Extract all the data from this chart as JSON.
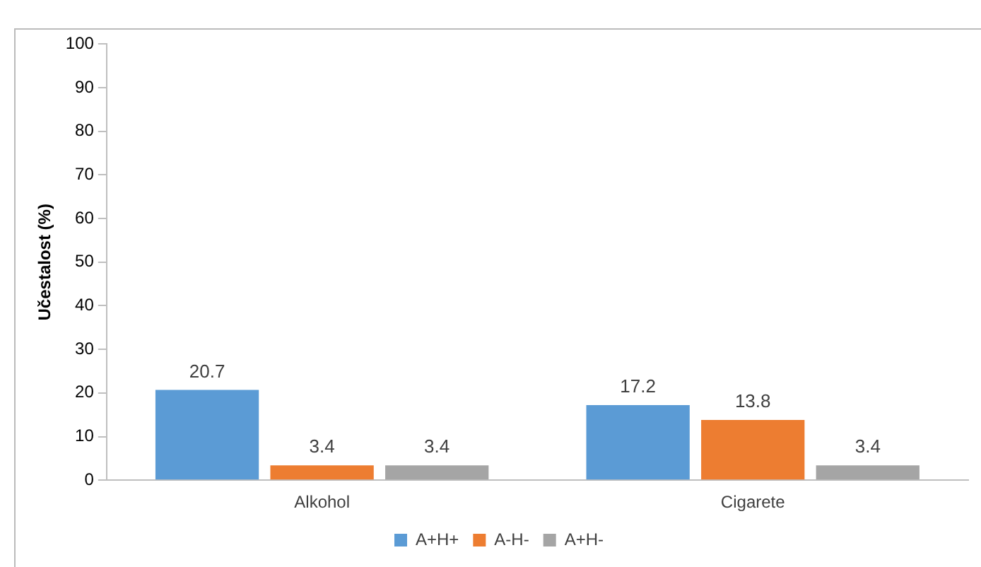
{
  "chart_data": {
    "type": "bar",
    "ylabel": "Učestalost (%)",
    "categories": [
      "Alkohol",
      "Cigarete"
    ],
    "series": [
      {
        "name": "A+H+",
        "color": "#5b9bd5",
        "values": [
          20.7,
          17.2
        ]
      },
      {
        "name": "A-H-",
        "color": "#ed7d31",
        "values": [
          3.4,
          13.8
        ]
      },
      {
        "name": "A+H-",
        "color": "#a5a5a5",
        "values": [
          3.4,
          3.4
        ]
      }
    ],
    "ylim": [
      0,
      100
    ],
    "yticks": [
      0,
      10,
      20,
      30,
      40,
      50,
      60,
      70,
      80,
      90,
      100
    ],
    "grid": false,
    "legend": "bottom",
    "data_labels": true
  }
}
